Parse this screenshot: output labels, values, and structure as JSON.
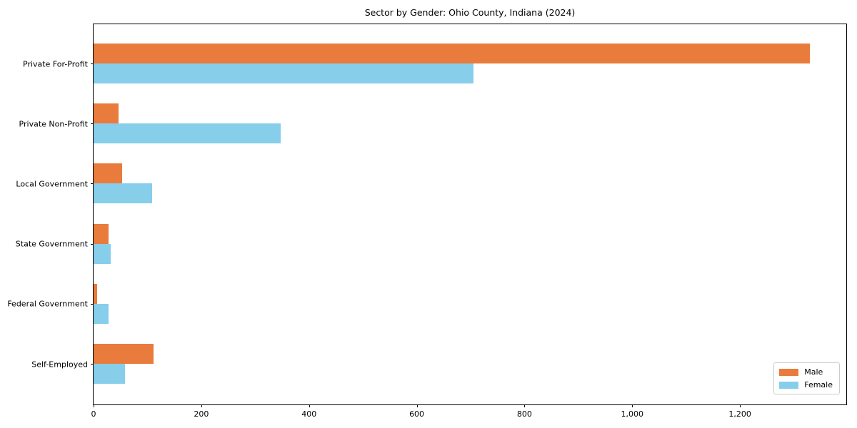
{
  "chart_data": {
    "type": "bar",
    "orientation": "horizontal",
    "title": "Sector by Gender: Ohio County, Indiana (2024)",
    "categories": [
      "Private For-Profit",
      "Private Non-Profit",
      "Local Government",
      "State Government",
      "Federal Government",
      "Self-Employed"
    ],
    "series": [
      {
        "name": "Male",
        "color": "#E97C3C",
        "values": [
          1332,
          46,
          53,
          28,
          6,
          111
        ]
      },
      {
        "name": "Female",
        "color": "#87CEEB",
        "values": [
          706,
          348,
          109,
          32,
          28,
          58
        ]
      }
    ],
    "xlabel": "",
    "ylabel": "",
    "xlim": [
      0,
      1400
    ],
    "xticks": [
      0,
      200,
      400,
      600,
      800,
      1000,
      1200
    ],
    "xtick_labels": [
      "0",
      "200",
      "400",
      "600",
      "800",
      "1,000",
      "1,200"
    ],
    "grid": false,
    "legend_position": "lower right",
    "bar_color_male": "#E97C3C",
    "bar_color_female": "#87CEEB"
  }
}
